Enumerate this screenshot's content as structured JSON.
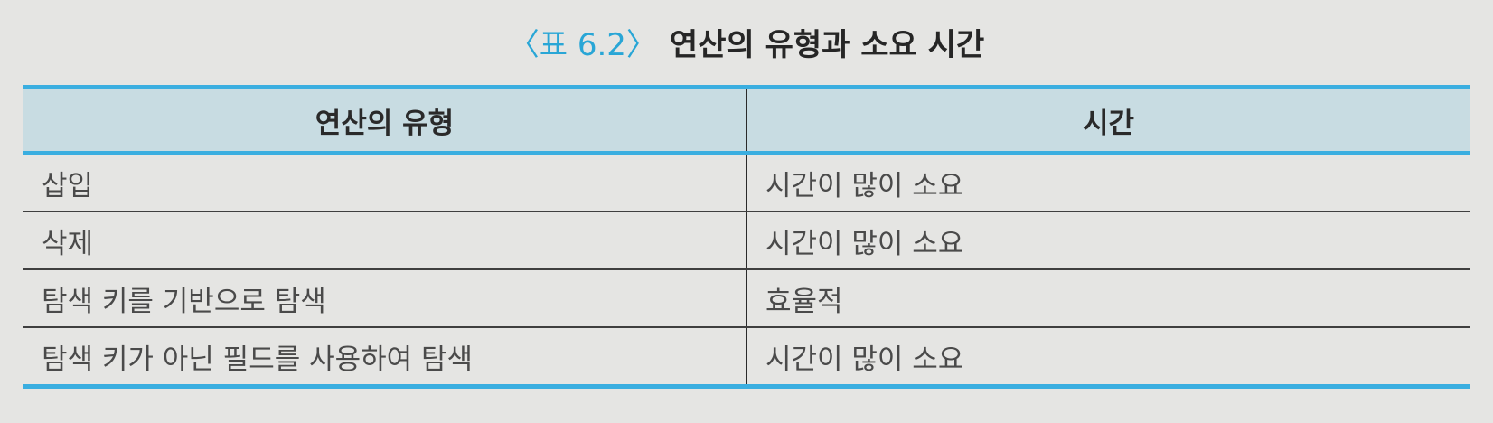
{
  "caption": {
    "label": "〈표 6.2〉",
    "title": "연산의 유형과 소요 시간"
  },
  "table": {
    "headers": [
      "연산의 유형",
      "시간"
    ],
    "rows": [
      [
        "삽입",
        "시간이 많이 소요"
      ],
      [
        "삭제",
        "시간이 많이 소요"
      ],
      [
        "탐색 키를 기반으로 탐색",
        "효율적"
      ],
      [
        "탐색 키가 아닌 필드를 사용하여 탐색",
        "시간이 많이 소요"
      ]
    ]
  }
}
